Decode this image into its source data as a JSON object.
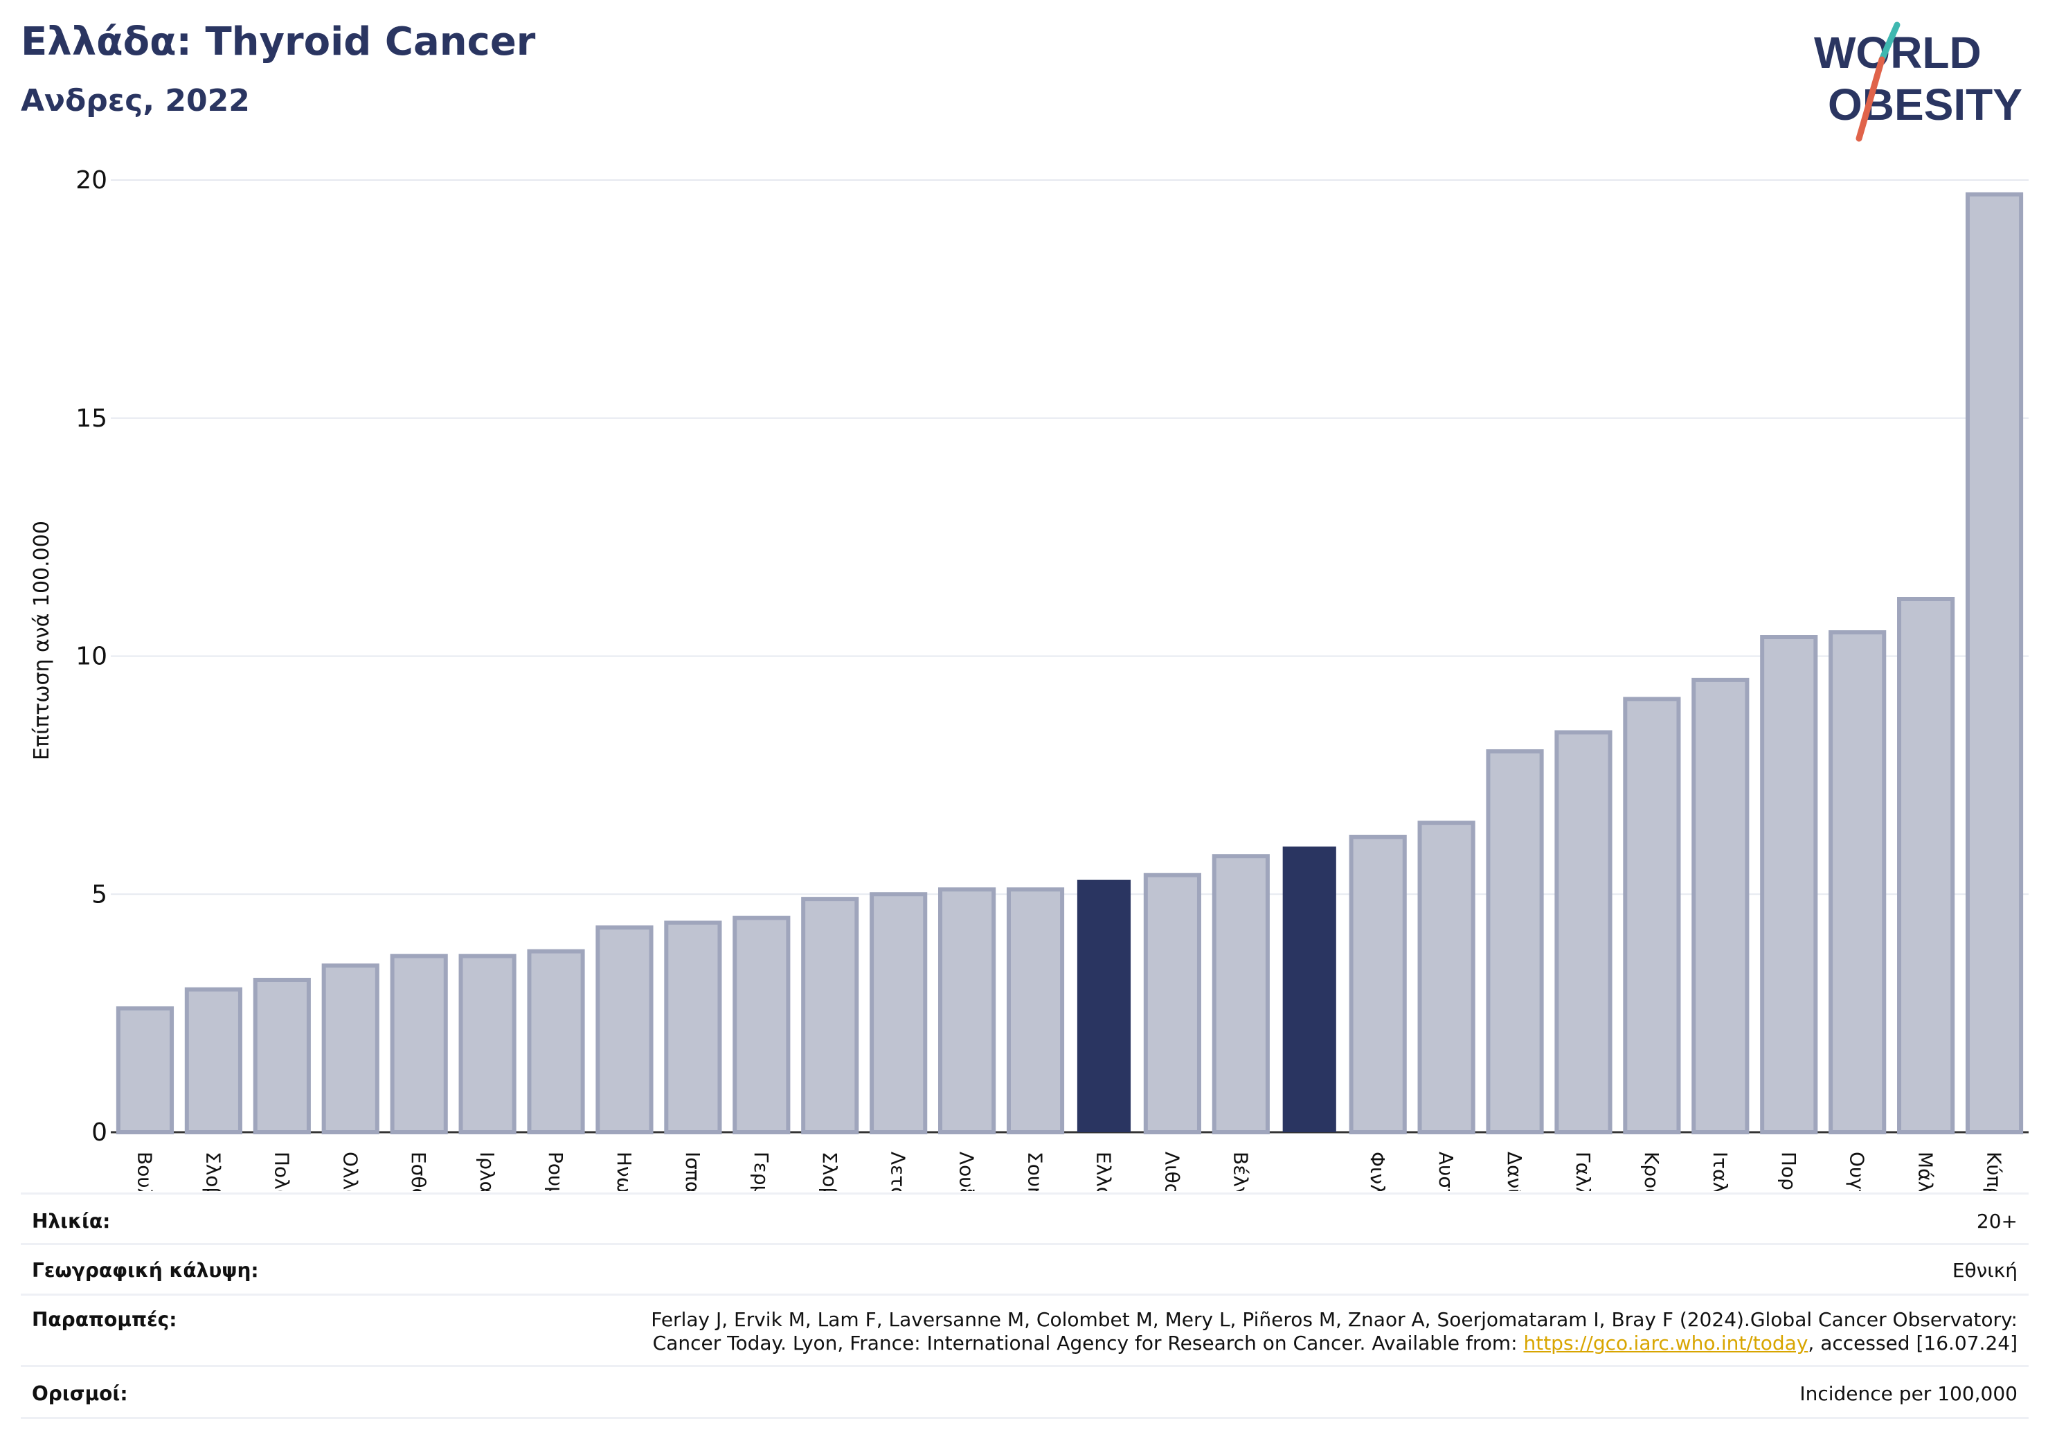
{
  "header": {
    "title": "Ελλάδα: Thyroid Cancer",
    "subtitle": "Ανδρες, 2022"
  },
  "logo": {
    "line1": "WORLD",
    "line2": "OBESITY"
  },
  "colors": {
    "bar": "#bfc3d1",
    "bar_stroke": "#9fa5bc",
    "highlight": "#2a3561",
    "grid": "#e6e9f0",
    "logo_slash_teal": "#3fb8b0",
    "logo_slash_red": "#e0634a"
  },
  "chart_data": {
    "type": "bar",
    "ylabel": "Επίπτωση ανά 100.000",
    "ylim": [
      0,
      20
    ],
    "yticks": [
      0,
      5,
      10,
      15,
      20
    ],
    "grid": true,
    "categories": [
      "Βουλγαρία",
      "Σλοβακία",
      "Πολωνία",
      "Ολλανδία",
      "Εσθονία",
      "Ιρλανδία",
      "Ρουμανία",
      "Ηνωμένο Βασίλειο",
      "Ισπανία",
      "Γερμανία",
      "Σλοβενία",
      "Λετονία",
      "Λουξεμβούργο",
      "Σουηδία",
      "Ελλάδα",
      "Λιθουανία",
      "Βέλγιο",
      "",
      "Φινλανδία",
      "Αυστρία",
      "Δανία",
      "Γαλλία",
      "Κροατία",
      "Ιταλία",
      "Πορτογαλία",
      "Ουγγαρία",
      "Μάλτα",
      "Κύπρος"
    ],
    "values": [
      2.6,
      3.0,
      3.2,
      3.5,
      3.7,
      3.7,
      3.8,
      4.3,
      4.4,
      4.5,
      4.9,
      5.0,
      5.1,
      5.1,
      5.3,
      5.4,
      5.8,
      6.0,
      6.2,
      6.5,
      8.0,
      8.4,
      9.1,
      9.5,
      10.4,
      10.5,
      11.2,
      19.7
    ],
    "highlighted": [
      14,
      17
    ]
  },
  "meta": {
    "age_label": "Ηλικία:",
    "age_value": "20+",
    "coverage_label": "Γεωγραφική κάλυψη:",
    "coverage_value": "Εθνική",
    "refs_label": "Παραπομπές:",
    "refs_line1": "Ferlay J, Ervik M, Lam F, Laversanne M, Colombet M, Mery L, Piñeros M, Znaor A, Soerjomataram I, Bray F (2024).Global Cancer Observatory:",
    "refs_line2_pre": "Cancer Today. Lyon, France: International Agency for Research on Cancer. Available from: ",
    "refs_link": "https://gco.iarc.who.int/today",
    "refs_line2_post": ", accessed [16.07.24]",
    "defs_label": "Ορισμοί:",
    "defs_value": "Incidence per 100,000"
  }
}
